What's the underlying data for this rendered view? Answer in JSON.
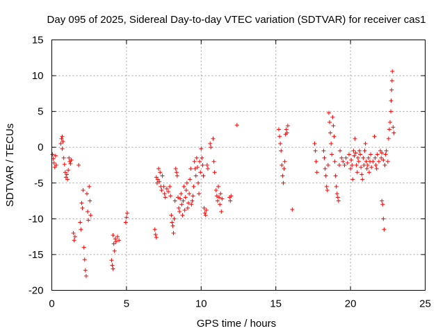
{
  "chart_data": {
    "type": "scatter",
    "title": "Day 095 of 2025, Sidereal Day-to-day VTEC variation (SDTVAR) for receiver cas1",
    "xlabel": "GPS time / hours",
    "ylabel": "SDTVAR / TECUs",
    "xlim": [
      0,
      25
    ],
    "ylim": [
      -20,
      15
    ],
    "xticks": [
      0,
      5,
      10,
      15,
      20,
      25
    ],
    "xtick_labels": [
      "0",
      "5",
      "10",
      "15",
      "20",
      "25"
    ],
    "yticks": [
      -20,
      -15,
      -10,
      -5,
      0,
      5,
      10,
      15
    ],
    "ytick_labels": [
      "-20",
      "-15",
      "-10",
      "-5",
      "0",
      "5",
      "10",
      "15"
    ],
    "grid": true,
    "marker": "+",
    "series": [
      {
        "name": "SDTVAR",
        "color": "#ff0000",
        "points": [
          [
            0.05,
            -1.0
          ],
          [
            0.1,
            -1.6
          ],
          [
            0.15,
            -2.2
          ],
          [
            0.2,
            -2.8
          ],
          [
            0.25,
            -1.2
          ],
          [
            0.3,
            -2.5
          ],
          [
            0.6,
            0.5
          ],
          [
            0.65,
            1.2
          ],
          [
            0.7,
            1.5
          ],
          [
            0.7,
            -0.2
          ],
          [
            0.75,
            0.8
          ],
          [
            0.8,
            -1.5
          ],
          [
            0.85,
            -2.4
          ],
          [
            0.9,
            -3.5
          ],
          [
            0.95,
            -4.2
          ],
          [
            1.0,
            -3.8
          ],
          [
            1.05,
            -4.5
          ],
          [
            1.1,
            -3.2
          ],
          [
            1.15,
            -1.5
          ],
          [
            1.2,
            -2.0
          ],
          [
            1.25,
            -2.3
          ],
          [
            1.3,
            -1.8
          ],
          [
            1.45,
            -12.0
          ],
          [
            1.5,
            -13.0
          ],
          [
            1.55,
            -12.5
          ],
          [
            1.8,
            -2.5
          ],
          [
            1.9,
            -10.5
          ],
          [
            1.95,
            -11.5
          ],
          [
            2.0,
            -7.8
          ],
          [
            2.05,
            -8.5
          ],
          [
            2.1,
            -6.0
          ],
          [
            2.15,
            -14.0
          ],
          [
            2.2,
            -15.7
          ],
          [
            2.25,
            -17.2
          ],
          [
            2.3,
            -18.0
          ],
          [
            2.35,
            -6.5
          ],
          [
            2.4,
            -9.0
          ],
          [
            2.45,
            -10.2
          ],
          [
            2.5,
            -5.5
          ],
          [
            2.55,
            -7.5
          ],
          [
            2.6,
            -9.5
          ],
          [
            4.0,
            -15.8
          ],
          [
            4.05,
            -16.5
          ],
          [
            4.1,
            -17.0
          ],
          [
            4.1,
            -12.3
          ],
          [
            4.15,
            -13.5
          ],
          [
            4.2,
            -14.5
          ],
          [
            4.25,
            -12.8
          ],
          [
            4.3,
            -13.2
          ],
          [
            4.4,
            -12.5
          ],
          [
            4.5,
            -13.0
          ],
          [
            4.95,
            -10.5
          ],
          [
            5.0,
            -9.8
          ],
          [
            5.05,
            -9.2
          ],
          [
            6.9,
            -11.5
          ],
          [
            6.95,
            -12.2
          ],
          [
            7.0,
            -12.6
          ],
          [
            7.0,
            -4.2
          ],
          [
            7.05,
            -5.0
          ],
          [
            7.1,
            -4.5
          ],
          [
            7.15,
            -3.0
          ],
          [
            7.2,
            -4.8
          ],
          [
            7.25,
            -3.5
          ],
          [
            7.3,
            -5.5
          ],
          [
            7.35,
            -6.0
          ],
          [
            7.4,
            -4.0
          ],
          [
            7.5,
            -5.5
          ],
          [
            7.55,
            -6.5
          ],
          [
            7.6,
            -7.0
          ],
          [
            7.7,
            -5.8
          ],
          [
            7.8,
            -6.2
          ],
          [
            7.9,
            -5.5
          ],
          [
            7.95,
            -6.8
          ],
          [
            8.0,
            -9.5
          ],
          [
            8.05,
            -10.5
          ],
          [
            8.1,
            -11.0
          ],
          [
            8.15,
            -12.0
          ],
          [
            8.2,
            -10.0
          ],
          [
            8.25,
            -7.5
          ],
          [
            8.3,
            -3.0
          ],
          [
            8.35,
            -3.5
          ],
          [
            8.4,
            -4.0
          ],
          [
            8.45,
            -7.0
          ],
          [
            8.5,
            -8.5
          ],
          [
            8.55,
            -9.0
          ],
          [
            8.6,
            -7.2
          ],
          [
            8.65,
            -6.5
          ],
          [
            8.7,
            -8.0
          ],
          [
            8.75,
            -9.5
          ],
          [
            8.8,
            -7.5
          ],
          [
            8.85,
            -5.5
          ],
          [
            8.9,
            -8.8
          ],
          [
            8.95,
            -7.0
          ],
          [
            9.0,
            -6.0
          ],
          [
            9.05,
            -5.0
          ],
          [
            9.1,
            -8.5
          ],
          [
            9.15,
            -7.8
          ],
          [
            9.2,
            -6.5
          ],
          [
            9.25,
            -4.5
          ],
          [
            9.3,
            -3.0
          ],
          [
            9.35,
            -8.0
          ],
          [
            9.4,
            -7.5
          ],
          [
            9.45,
            -6.8
          ],
          [
            9.5,
            -5.5
          ],
          [
            9.55,
            -2.0
          ],
          [
            9.6,
            -3.0
          ],
          [
            9.65,
            -4.0
          ],
          [
            9.7,
            -1.5
          ],
          [
            9.75,
            -2.8
          ],
          [
            9.8,
            -5.0
          ],
          [
            9.85,
            -6.5
          ],
          [
            9.9,
            -2.0
          ],
          [
            9.95,
            -3.5
          ],
          [
            10.0,
            -0.2
          ],
          [
            10.05,
            -1.5
          ],
          [
            10.1,
            -2.5
          ],
          [
            10.15,
            -4.0
          ],
          [
            10.2,
            -8.5
          ],
          [
            10.25,
            -9.2
          ],
          [
            10.3,
            -9.5
          ],
          [
            10.35,
            -8.8
          ],
          [
            10.4,
            -2.5
          ],
          [
            10.45,
            -3.0
          ],
          [
            10.6,
            0.5
          ],
          [
            10.65,
            0.0
          ],
          [
            10.8,
            1.2
          ],
          [
            10.85,
            -2.0
          ],
          [
            10.9,
            -3.5
          ],
          [
            11.0,
            -6.0
          ],
          [
            11.05,
            -6.8
          ],
          [
            11.1,
            -7.5
          ],
          [
            11.15,
            -5.5
          ],
          [
            11.2,
            -7.0
          ],
          [
            11.25,
            -8.0
          ],
          [
            11.3,
            -6.5
          ],
          [
            11.35,
            -9.0
          ],
          [
            11.4,
            -7.2
          ],
          [
            11.9,
            -7.0
          ],
          [
            11.95,
            -7.5
          ],
          [
            12.0,
            -6.8
          ],
          [
            12.4,
            3.1
          ],
          [
            15.2,
            2.5
          ],
          [
            15.25,
            1.5
          ],
          [
            15.3,
            0.5
          ],
          [
            15.35,
            -0.5
          ],
          [
            15.4,
            -2.5
          ],
          [
            15.45,
            -4.0
          ],
          [
            15.5,
            -5.0
          ],
          [
            15.55,
            -3.0
          ],
          [
            15.6,
            -2.0
          ],
          [
            15.65,
            1.8
          ],
          [
            15.7,
            2.5
          ],
          [
            15.75,
            2.0
          ],
          [
            15.8,
            3.0
          ],
          [
            16.1,
            -8.7
          ],
          [
            17.6,
            0.5
          ],
          [
            17.65,
            -0.5
          ],
          [
            17.7,
            -2.0
          ],
          [
            17.75,
            -3.5
          ],
          [
            18.2,
            -0.5
          ],
          [
            18.25,
            -1.5
          ],
          [
            18.3,
            -3.0
          ],
          [
            18.35,
            -4.0
          ],
          [
            18.4,
            -5.5
          ],
          [
            18.45,
            -6.0
          ],
          [
            18.5,
            -2.5
          ],
          [
            18.55,
            4.8
          ],
          [
            18.6,
            3.5
          ],
          [
            18.65,
            2.0
          ],
          [
            18.7,
            0.5
          ],
          [
            18.75,
            -1.0
          ],
          [
            18.8,
            4.2
          ],
          [
            18.85,
            3.0
          ],
          [
            18.9,
            1.5
          ],
          [
            18.95,
            -2.0
          ],
          [
            19.0,
            -4.0
          ],
          [
            19.05,
            -5.5
          ],
          [
            19.1,
            -6.5
          ],
          [
            19.15,
            -7.0
          ],
          [
            19.2,
            -7.5
          ],
          [
            19.25,
            -2.5
          ],
          [
            19.3,
            -0.5
          ],
          [
            19.4,
            -1.5
          ],
          [
            19.5,
            -2.0
          ],
          [
            19.6,
            -2.5
          ],
          [
            19.7,
            -1.5
          ],
          [
            19.8,
            -2.2
          ],
          [
            19.9,
            -1.0
          ],
          [
            20.0,
            -3.0
          ],
          [
            20.05,
            -1.8
          ],
          [
            20.1,
            -2.5
          ],
          [
            20.15,
            -4.5
          ],
          [
            20.2,
            -0.5
          ],
          [
            20.25,
            -1.2
          ],
          [
            20.3,
            1.2
          ],
          [
            20.35,
            -0.8
          ],
          [
            20.4,
            -2.5
          ],
          [
            20.45,
            -3.5
          ],
          [
            20.5,
            -1.5
          ],
          [
            20.55,
            -2.0
          ],
          [
            20.6,
            -0.5
          ],
          [
            20.65,
            -1.0
          ],
          [
            20.7,
            -2.8
          ],
          [
            20.75,
            -3.8
          ],
          [
            20.8,
            -4.5
          ],
          [
            20.85,
            -1.5
          ],
          [
            20.9,
            -2.5
          ],
          [
            20.95,
            -0.5
          ],
          [
            21.0,
            0.5
          ],
          [
            21.05,
            -2.0
          ],
          [
            21.1,
            -3.0
          ],
          [
            21.15,
            -2.5
          ],
          [
            21.2,
            -1.5
          ],
          [
            21.25,
            -3.5
          ],
          [
            21.3,
            -2.0
          ],
          [
            21.35,
            -1.0
          ],
          [
            21.4,
            -2.8
          ],
          [
            21.5,
            -2.0
          ],
          [
            21.6,
            1.5
          ],
          [
            21.65,
            -1.5
          ],
          [
            21.7,
            -2.5
          ],
          [
            21.75,
            -3.0
          ],
          [
            21.8,
            -1.0
          ],
          [
            21.9,
            -2.0
          ],
          [
            22.0,
            -0.5
          ],
          [
            22.05,
            -1.5
          ],
          [
            22.1,
            -7.5
          ],
          [
            22.15,
            -8.0
          ],
          [
            22.2,
            -10.0
          ],
          [
            22.25,
            -11.5
          ],
          [
            22.1,
            -0.8
          ],
          [
            22.2,
            -1.8
          ],
          [
            22.3,
            -2.5
          ],
          [
            22.35,
            -1.0
          ],
          [
            22.4,
            -0.5
          ],
          [
            22.5,
            -2.0
          ],
          [
            22.55,
            1.2
          ],
          [
            22.6,
            2.5
          ],
          [
            22.65,
            3.5
          ],
          [
            22.7,
            5.0
          ],
          [
            22.72,
            6.5
          ],
          [
            22.75,
            8.0
          ],
          [
            22.78,
            9.3
          ],
          [
            22.8,
            10.6
          ],
          [
            22.85,
            2.8
          ],
          [
            22.9,
            2.0
          ]
        ]
      }
    ]
  }
}
